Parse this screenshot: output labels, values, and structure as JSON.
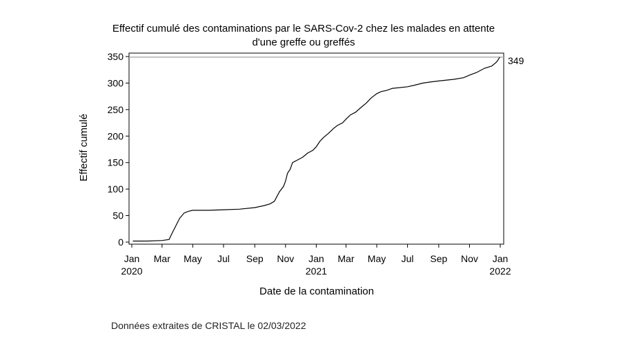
{
  "chart_data": {
    "type": "line",
    "title": "Effectif cumulé des contaminations par le SARS-Cov-2 chez les malades en attente d'une greffe ou greffés",
    "title_lines": [
      "Effectif cumulé des contaminations par le SARS-Cov-2 chez les malades en attente",
      "d'une greffe ou greffés"
    ],
    "xlabel": "Date de la contamination",
    "ylabel": "Effectif cumulé",
    "ylim": [
      0,
      350
    ],
    "yticks": [
      0,
      50,
      100,
      150,
      200,
      250,
      300,
      350
    ],
    "xlim": [
      "2020-01-01",
      "2022-01-01"
    ],
    "xticks": [
      {
        "date": "2020-01-01",
        "label": "Jan",
        "year": "2020"
      },
      {
        "date": "2020-03-01",
        "label": "Mar",
        "year": ""
      },
      {
        "date": "2020-05-01",
        "label": "May",
        "year": ""
      },
      {
        "date": "2020-07-01",
        "label": "Jul",
        "year": ""
      },
      {
        "date": "2020-09-01",
        "label": "Sep",
        "year": ""
      },
      {
        "date": "2020-11-01",
        "label": "Nov",
        "year": ""
      },
      {
        "date": "2021-01-01",
        "label": "Jan",
        "year": "2021"
      },
      {
        "date": "2021-03-01",
        "label": "Mar",
        "year": ""
      },
      {
        "date": "2021-05-01",
        "label": "May",
        "year": ""
      },
      {
        "date": "2021-07-01",
        "label": "Jul",
        "year": ""
      },
      {
        "date": "2021-09-01",
        "label": "Sep",
        "year": ""
      },
      {
        "date": "2021-11-01",
        "label": "Nov",
        "year": ""
      },
      {
        "date": "2022-01-01",
        "label": "Jan",
        "year": "2022"
      }
    ],
    "reference_line": 349,
    "end_label": "349",
    "grid": false,
    "legend": "none",
    "line_color": "#000000",
    "reference_color": "#aaaaaa",
    "series": [
      {
        "x": [
          "2020-01-03",
          "2020-02-01",
          "2020-03-01",
          "2020-03-15",
          "2020-03-20",
          "2020-03-28",
          "2020-04-05",
          "2020-04-14",
          "2020-04-22",
          "2020-05-01",
          "2020-06-01",
          "2020-07-01",
          "2020-08-01",
          "2020-09-01",
          "2020-09-20",
          "2020-10-01",
          "2020-10-10",
          "2020-10-20",
          "2020-10-28",
          "2020-11-01",
          "2020-11-05",
          "2020-11-10",
          "2020-11-15",
          "2020-11-25",
          "2020-12-05",
          "2020-12-15",
          "2020-12-25",
          "2021-01-01",
          "2021-01-08",
          "2021-01-15",
          "2021-01-25",
          "2021-02-05",
          "2021-02-12",
          "2021-02-22",
          "2021-03-01",
          "2021-03-10",
          "2021-03-20",
          "2021-04-01",
          "2021-04-10",
          "2021-04-20",
          "2021-05-01",
          "2021-05-10",
          "2021-05-20",
          "2021-06-01",
          "2021-07-01",
          "2021-07-15",
          "2021-08-01",
          "2021-08-15",
          "2021-09-01",
          "2021-10-01",
          "2021-10-20",
          "2021-11-01",
          "2021-11-15",
          "2021-12-01",
          "2021-12-15",
          "2021-12-25",
          "2021-12-31"
        ],
        "y": [
          2,
          2,
          3,
          5,
          15,
          30,
          45,
          55,
          58,
          60,
          60,
          61,
          62,
          65,
          69,
          72,
          77,
          95,
          105,
          115,
          130,
          137,
          150,
          155,
          160,
          168,
          173,
          180,
          190,
          197,
          205,
          215,
          220,
          225,
          232,
          240,
          245,
          255,
          262,
          272,
          280,
          284,
          286,
          290,
          293,
          296,
          300,
          302,
          304,
          307,
          310,
          315,
          320,
          328,
          332,
          340,
          349
        ]
      }
    ]
  },
  "footer": {
    "source": "Données extraites de CRISTAL le 02/03/2022"
  }
}
